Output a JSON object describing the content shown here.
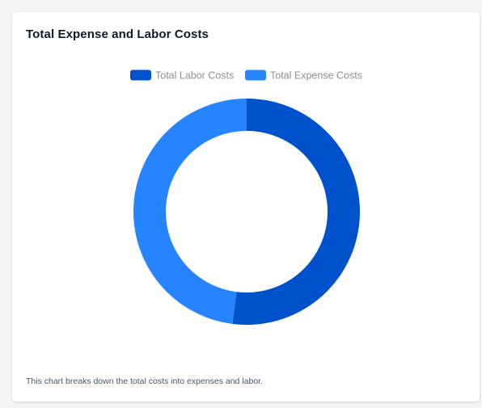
{
  "card": {
    "title": "Total Expense and Labor Costs",
    "description": "This chart breaks down the total costs into expenses and labor."
  },
  "chart_data": {
    "type": "pie",
    "variant": "doughnut",
    "categories": [
      "Total Labor Costs",
      "Total Expense Costs"
    ],
    "values": [
      52,
      48
    ],
    "colors": [
      "#0052cc",
      "#2684ff"
    ],
    "legend_position": "top",
    "title": "",
    "xlabel": "",
    "ylabel": ""
  }
}
